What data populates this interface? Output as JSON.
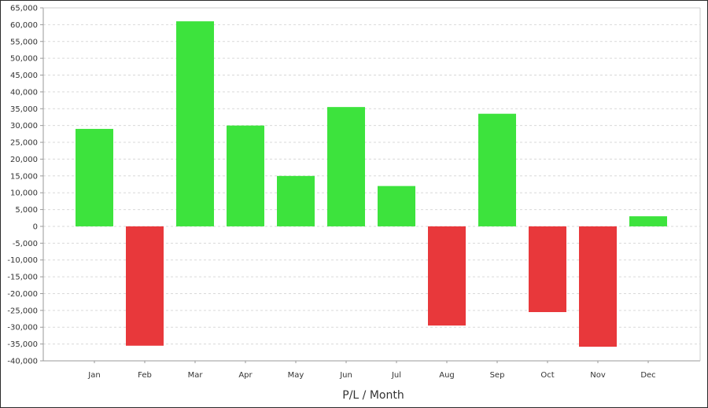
{
  "chart_data": {
    "type": "bar",
    "title": "",
    "xlabel": "P/L / Month",
    "ylabel": "",
    "categories": [
      "Jan",
      "Feb",
      "Mar",
      "Apr",
      "May",
      "Jun",
      "Jul",
      "Aug",
      "Sep",
      "Oct",
      "Nov",
      "Dec"
    ],
    "values": [
      29000,
      -35500,
      61000,
      30000,
      15000,
      35500,
      12000,
      -29500,
      33500,
      -25500,
      -35800,
      3000
    ],
    "ylim": [
      -40000,
      65000
    ],
    "ytick_step": 5000,
    "grid": true,
    "legend": "none",
    "colors": {
      "positive": "#3de33d",
      "negative": "#e8383b",
      "grid": "#d9d9d9",
      "axis": "#999999"
    }
  }
}
